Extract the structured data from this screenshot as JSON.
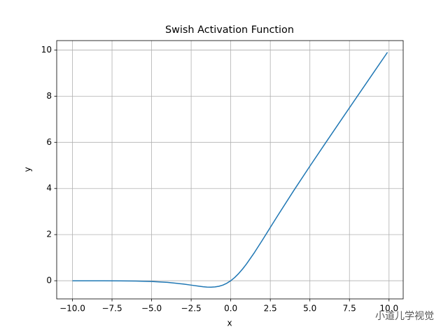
{
  "chart_data": {
    "type": "line",
    "title": "Swish Activation Function",
    "x_label": "x",
    "y_label": "y",
    "x": [
      -10,
      -9,
      -8,
      -7,
      -6,
      -5,
      -4,
      -3,
      -2.5,
      -2,
      -1.75,
      -1.5,
      -1.25,
      -1,
      -0.75,
      -0.5,
      -0.25,
      0,
      0.25,
      0.5,
      0.75,
      1,
      1.5,
      2,
      2.5,
      3,
      4,
      5,
      6,
      7,
      8,
      9,
      9.9
    ],
    "series": [
      {
        "name": "swish",
        "color": "#1f77b4",
        "values": [
          -0.0005,
          -0.0011,
          -0.0027,
          -0.0064,
          -0.0148,
          -0.0335,
          -0.0719,
          -0.1423,
          -0.1896,
          -0.2384,
          -0.259,
          -0.2736,
          -0.2784,
          -0.2689,
          -0.2406,
          -0.1888,
          -0.1095,
          0,
          0.1405,
          0.3112,
          0.5094,
          0.7311,
          1.2264,
          1.7616,
          2.3104,
          2.8577,
          3.9281,
          4.9665,
          5.9852,
          6.9936,
          7.9973,
          8.9989,
          9.8995
        ]
      }
    ],
    "xlim": [
      -10.995,
      10.895
    ],
    "ylim": [
      -0.787,
      10.408
    ],
    "xticks": [
      {
        "value": -10,
        "label": "−10.0"
      },
      {
        "value": -7.5,
        "label": "−7.5"
      },
      {
        "value": -5,
        "label": "−5.0"
      },
      {
        "value": -2.5,
        "label": "−2.5"
      },
      {
        "value": 0,
        "label": "0.0"
      },
      {
        "value": 2.5,
        "label": "2.5"
      },
      {
        "value": 5,
        "label": "5.0"
      },
      {
        "value": 7.5,
        "label": "7.5"
      },
      {
        "value": 10,
        "label": "10.0"
      }
    ],
    "yticks": [
      0,
      2,
      4,
      6,
      8,
      10
    ],
    "grid": true
  },
  "watermark": "小道儿学视觉"
}
